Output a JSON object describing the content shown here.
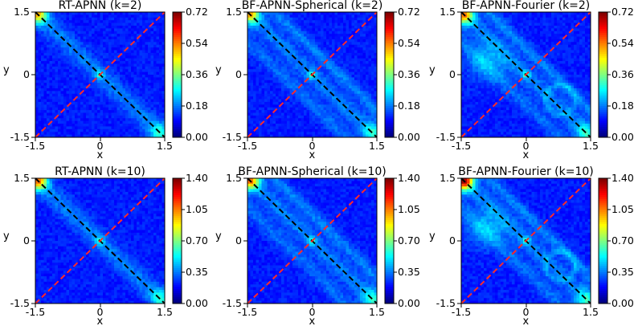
{
  "chart_data": [
    {
      "type": "heatmap",
      "title": "RT-APNN (k=2)",
      "xlabel": "x",
      "ylabel": "y",
      "xlim": [
        -1.5,
        1.5
      ],
      "ylim": [
        -1.5,
        1.5
      ],
      "xticks": [
        "-1.5",
        "0",
        "1.5"
      ],
      "yticks": [
        "1.5",
        "0",
        "-1.5"
      ],
      "colorbar": {
        "range": [
          0,
          0.72
        ],
        "ticks": [
          "0.72",
          "0.54",
          "0.36",
          "0.18",
          "0.00"
        ]
      },
      "colormap": "jet",
      "overlays": [
        {
          "line": "y=-x",
          "style": "black dashed"
        },
        {
          "line": "y=x",
          "style": "red dashed"
        }
      ]
    },
    {
      "type": "heatmap",
      "title": "BF-APNN-Spherical (k=2)",
      "xlabel": "x",
      "ylabel": "y",
      "xlim": [
        -1.5,
        1.5
      ],
      "ylim": [
        -1.5,
        1.5
      ],
      "xticks": [
        "-1.5",
        "0",
        "1.5"
      ],
      "yticks": [
        "1.5",
        "0",
        "-1.5"
      ],
      "colorbar": {
        "range": [
          0,
          0.72
        ],
        "ticks": [
          "0.72",
          "0.54",
          "0.36",
          "0.18",
          "0.00"
        ]
      },
      "colormap": "jet",
      "overlays": [
        {
          "line": "y=-x",
          "style": "black dashed"
        },
        {
          "line": "y=x",
          "style": "red dashed"
        }
      ]
    },
    {
      "type": "heatmap",
      "title": "BF-APNN-Fourier (k=2)",
      "xlabel": "x",
      "ylabel": "y",
      "xlim": [
        -1.5,
        1.5
      ],
      "ylim": [
        -1.5,
        1.5
      ],
      "xticks": [
        "-1.5",
        "0",
        "1.5"
      ],
      "yticks": [
        "1.5",
        "0",
        "-1.5"
      ],
      "colorbar": {
        "range": [
          0,
          0.72
        ],
        "ticks": [
          "0.72",
          "0.54",
          "0.36",
          "0.18",
          "0.00"
        ]
      },
      "colormap": "jet",
      "overlays": [
        {
          "line": "y=-x",
          "style": "black dashed"
        },
        {
          "line": "y=x",
          "style": "red dashed"
        }
      ]
    },
    {
      "type": "heatmap",
      "title": "RT-APNN (k=10)",
      "xlabel": "x",
      "ylabel": "y",
      "xlim": [
        -1.5,
        1.5
      ],
      "ylim": [
        -1.5,
        1.5
      ],
      "xticks": [
        "-1.5",
        "0",
        "1.5"
      ],
      "yticks": [
        "1.5",
        "0",
        "-1.5"
      ],
      "colorbar": {
        "range": [
          0,
          1.4
        ],
        "ticks": [
          "1.40",
          "1.05",
          "0.70",
          "0.35",
          "0.00"
        ]
      },
      "colormap": "jet",
      "overlays": [
        {
          "line": "y=-x",
          "style": "black dashed"
        },
        {
          "line": "y=x",
          "style": "red dashed"
        }
      ]
    },
    {
      "type": "heatmap",
      "title": "BF-APNN-Spherical (k=10)",
      "xlabel": "x",
      "ylabel": "y",
      "xlim": [
        -1.5,
        1.5
      ],
      "ylim": [
        -1.5,
        1.5
      ],
      "xticks": [
        "-1.5",
        "0",
        "1.5"
      ],
      "yticks": [
        "1.5",
        "0",
        "-1.5"
      ],
      "colorbar": {
        "range": [
          0,
          1.4
        ],
        "ticks": [
          "1.40",
          "1.05",
          "0.70",
          "0.35",
          "0.00"
        ]
      },
      "colormap": "jet",
      "overlays": [
        {
          "line": "y=-x",
          "style": "black dashed"
        },
        {
          "line": "y=x",
          "style": "red dashed"
        }
      ]
    },
    {
      "type": "heatmap",
      "title": "BF-APNN-Fourier (k=10)",
      "xlabel": "x",
      "ylabel": "y",
      "xlim": [
        -1.5,
        1.5
      ],
      "ylim": [
        -1.5,
        1.5
      ],
      "xticks": [
        "-1.5",
        "0",
        "1.5"
      ],
      "yticks": [
        "1.5",
        "0",
        "-1.5"
      ],
      "colorbar": {
        "range": [
          0,
          1.4
        ],
        "ticks": [
          "1.40",
          "1.05",
          "0.70",
          "0.35",
          "0.00"
        ]
      },
      "colormap": "jet",
      "overlays": [
        {
          "line": "y=-x",
          "style": "black dashed"
        },
        {
          "line": "y=x",
          "style": "red dashed"
        }
      ]
    }
  ]
}
